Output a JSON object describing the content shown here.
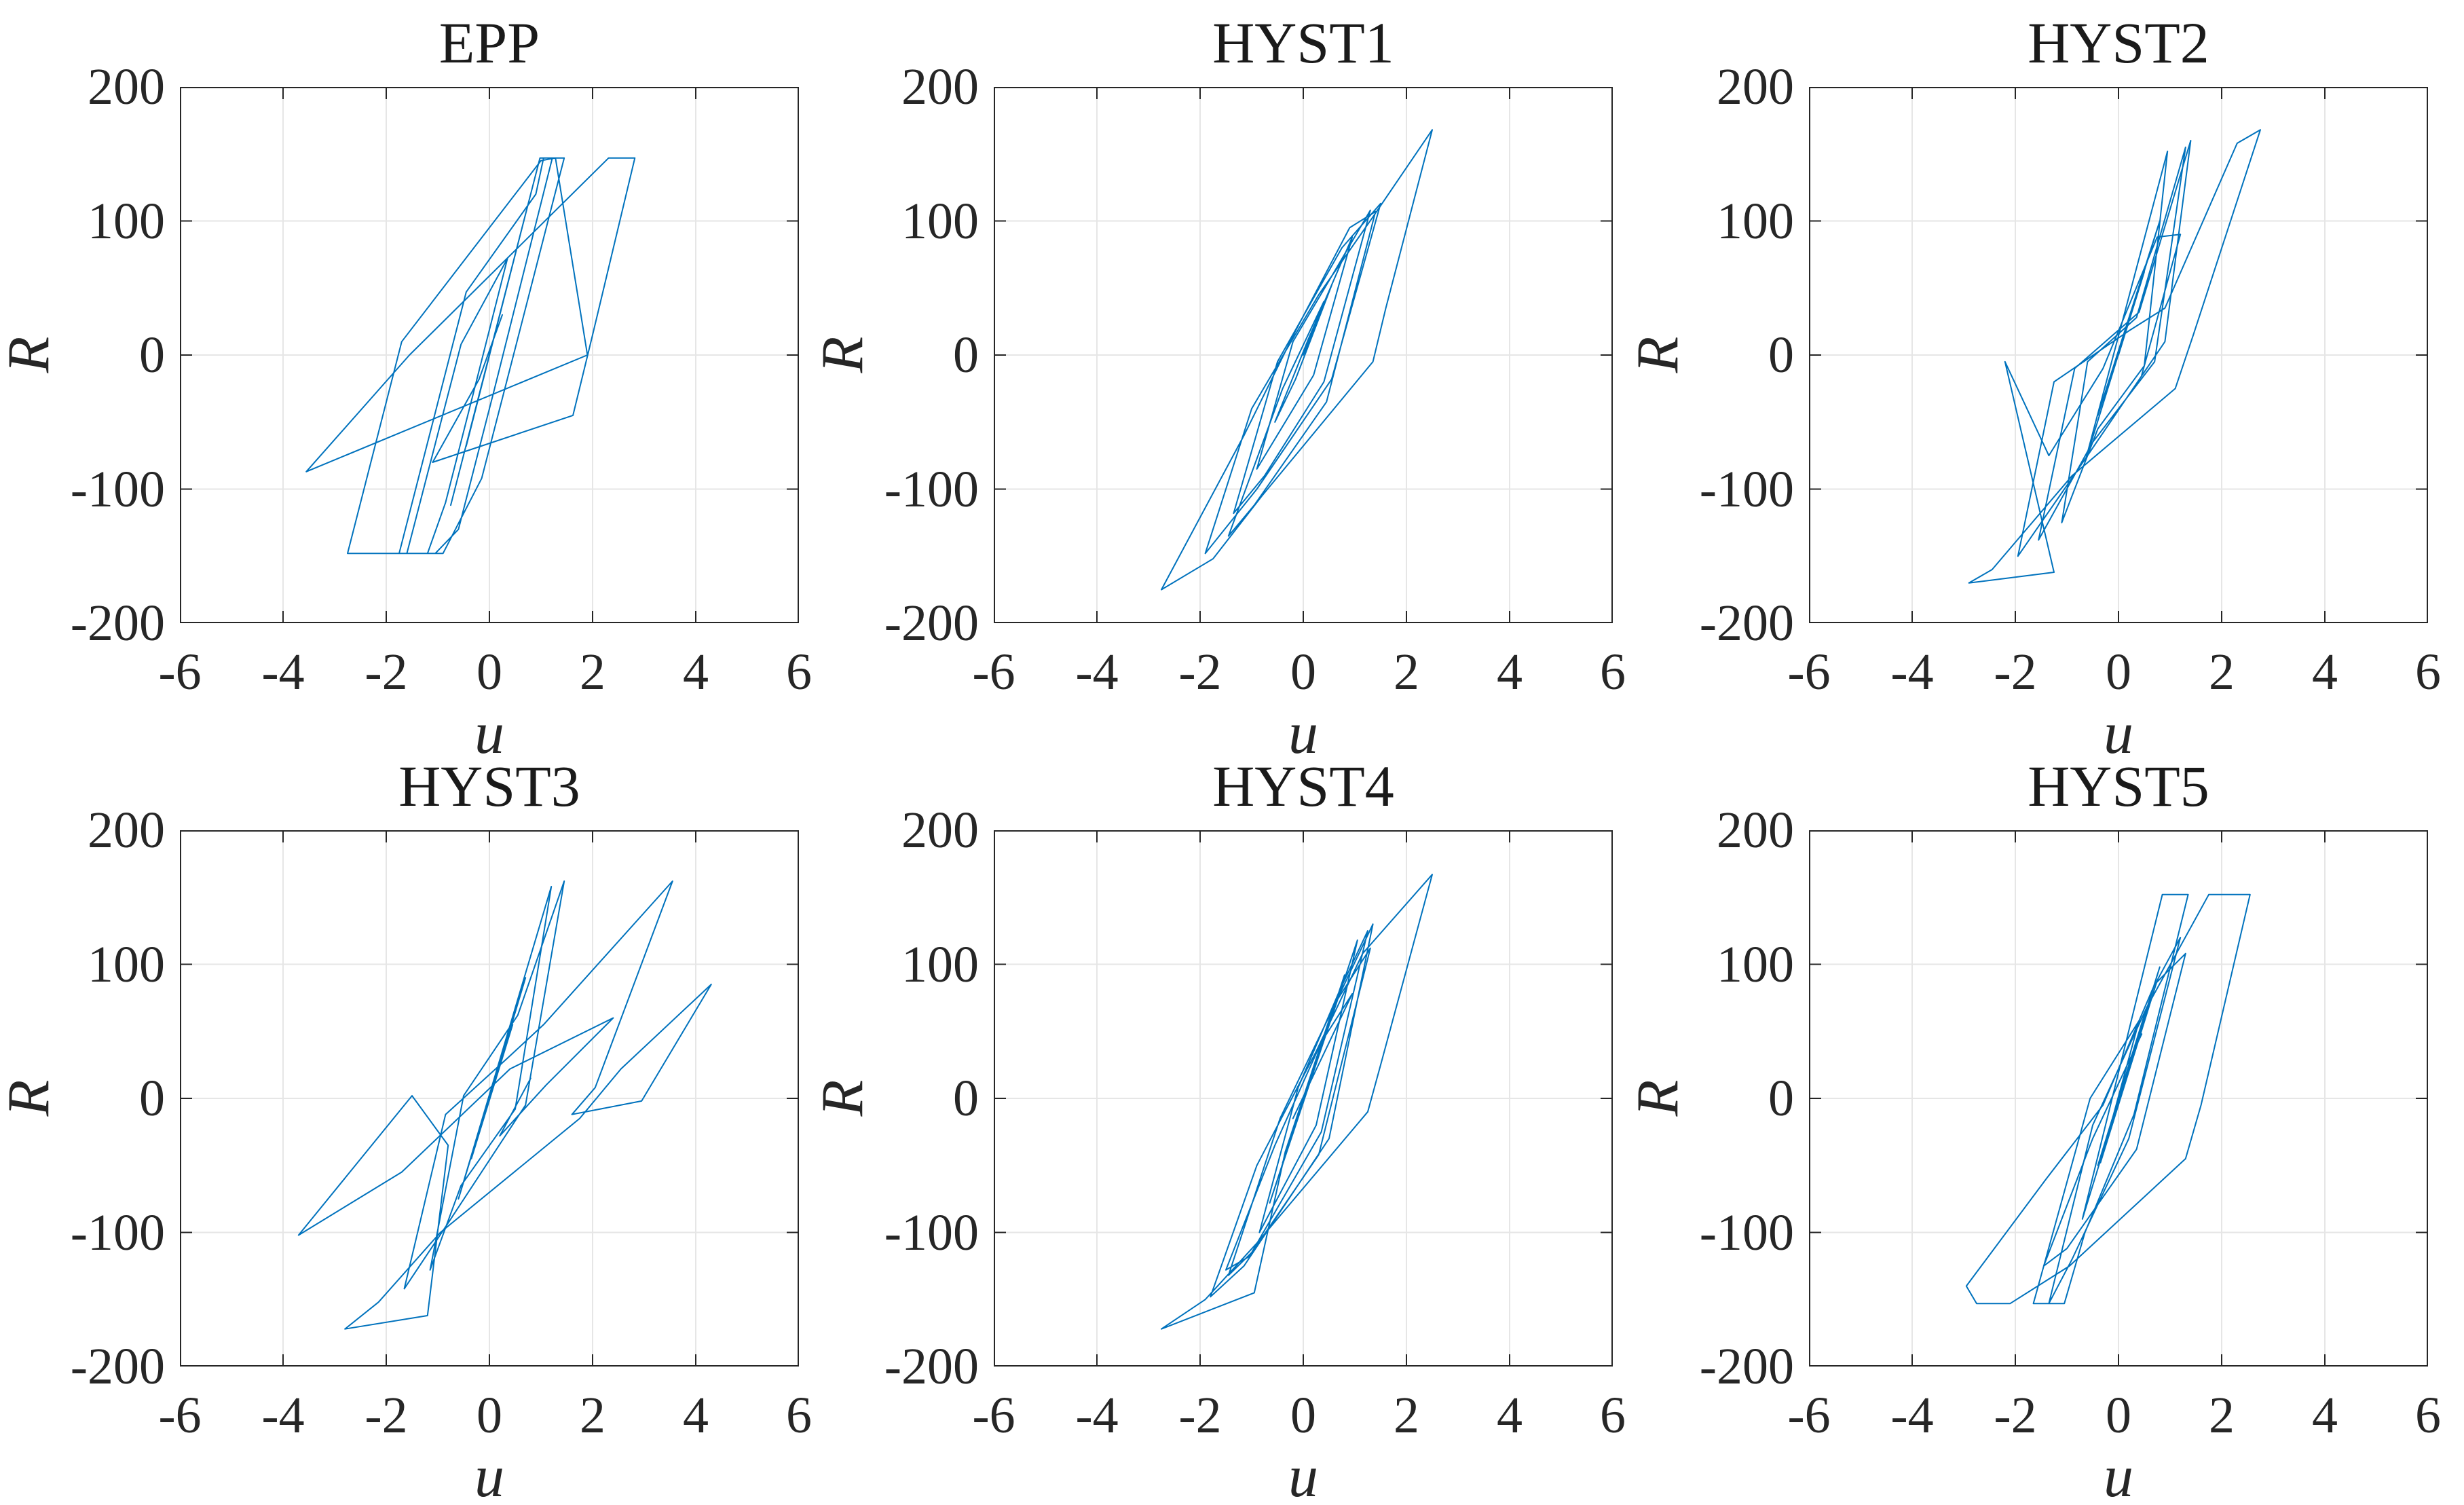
{
  "figure": {
    "background": "#ffffff",
    "accent_line_color": "#0072BD",
    "axis_color": "#262626",
    "grid_color": "#e6e6e6",
    "tick_text_color": "#262626"
  },
  "chart_data": {
    "type": "line",
    "layout": "2 rows x 3 columns of subplots",
    "xlabel": "u",
    "ylabel": "R",
    "xlim": [
      -6,
      6
    ],
    "ylim": [
      -200,
      200
    ],
    "xticks": [
      -6,
      -4,
      -2,
      0,
      2,
      4,
      6
    ],
    "yticks": [
      -200,
      -100,
      0,
      100,
      200
    ],
    "grid": true,
    "legend_position": "none",
    "series_color": "#0072BD",
    "subplots": [
      {
        "title": "EPP",
        "description": "elastic-perfectly-plastic hysteresis, yield plateaus at R=+147 and R=-148",
        "points": [
          [
            0,
            0
          ],
          [
            0.5,
            75
          ],
          [
            -0.45,
            -68
          ],
          [
            0.8,
            120
          ],
          [
            -0.75,
            -112
          ],
          [
            0.98,
            147
          ],
          [
            1.22,
            147
          ],
          [
            0.1,
            -25
          ],
          [
            -0.6,
            -130
          ],
          [
            -1.05,
            -148
          ],
          [
            -1.6,
            -148
          ],
          [
            -0.55,
            8
          ],
          [
            0.35,
            72
          ],
          [
            -0.4,
            -42
          ],
          [
            -0.85,
            -110
          ],
          [
            -1.2,
            -148
          ],
          [
            -1.75,
            -148
          ],
          [
            -0.45,
            47
          ],
          [
            0.9,
            120
          ],
          [
            1.05,
            147
          ],
          [
            1.45,
            147
          ],
          [
            0.4,
            -10
          ],
          [
            -0.15,
            -92
          ],
          [
            -0.9,
            -148
          ],
          [
            -2.75,
            -148
          ],
          [
            -1.7,
            10
          ],
          [
            1.0,
            145
          ],
          [
            1.28,
            147
          ],
          [
            1.9,
            0
          ],
          [
            -3.55,
            -87
          ],
          [
            -1.55,
            0
          ],
          [
            2.31,
            147
          ],
          [
            2.82,
            147
          ],
          [
            2.0,
            15
          ],
          [
            1.62,
            -45
          ],
          [
            -1.1,
            -80
          ],
          [
            -0.2,
            -18
          ],
          [
            0.25,
            30
          ]
        ]
      },
      {
        "title": "HYST1",
        "description": "bilinear hardening spindle loops, peak (2.5,168), min (-2.75,-175)",
        "points": [
          [
            0,
            0
          ],
          [
            0.55,
            52
          ],
          [
            -0.15,
            -18
          ],
          [
            -0.55,
            -50
          ],
          [
            0.1,
            12
          ],
          [
            0.95,
            88
          ],
          [
            0.2,
            -15
          ],
          [
            -0.9,
            -85
          ],
          [
            -0.2,
            10
          ],
          [
            0.6,
            62
          ],
          [
            1.3,
            108
          ],
          [
            0.4,
            -20
          ],
          [
            -0.75,
            -90
          ],
          [
            -1.35,
            -118
          ],
          [
            -0.5,
            -5
          ],
          [
            0.75,
            80
          ],
          [
            1.5,
            113
          ],
          [
            0.55,
            -18
          ],
          [
            -0.9,
            -100
          ],
          [
            -1.9,
            -148
          ],
          [
            -1.0,
            -40
          ],
          [
            0.3,
            45
          ],
          [
            1.35,
            103
          ],
          [
            2.5,
            168
          ],
          [
            1.6,
            35
          ],
          [
            1.35,
            -5
          ],
          [
            -0.8,
            -105
          ],
          [
            -1.75,
            -152
          ],
          [
            -2.75,
            -175
          ],
          [
            -1.15,
            -60
          ],
          [
            -0.15,
            18
          ],
          [
            0.9,
            95
          ],
          [
            1.4,
            107
          ],
          [
            0.45,
            -35
          ],
          [
            -0.95,
            -112
          ],
          [
            -1.45,
            -135
          ],
          [
            -0.4,
            -25
          ],
          [
            0.4,
            40
          ]
        ]
      },
      {
        "title": "HYST2",
        "description": "pinched hysteresis, peak (2.75,168), min (-2.9,-170)",
        "points": [
          [
            0,
            0
          ],
          [
            0.5,
            62
          ],
          [
            -0.4,
            -45
          ],
          [
            0.8,
            100
          ],
          [
            -0.65,
            -80
          ],
          [
            0.95,
            152
          ],
          [
            0.5,
            -8
          ],
          [
            -0.4,
            -55
          ],
          [
            -1.1,
            -125
          ],
          [
            -0.6,
            -5
          ],
          [
            0.35,
            28
          ],
          [
            1.3,
            155
          ],
          [
            0.7,
            -5
          ],
          [
            -0.5,
            -65
          ],
          [
            -1.55,
            -138
          ],
          [
            -0.85,
            -10
          ],
          [
            0.4,
            32
          ],
          [
            1.4,
            160
          ],
          [
            0.9,
            10
          ],
          [
            -0.6,
            -75
          ],
          [
            -1.95,
            -150
          ],
          [
            -1.25,
            -20
          ],
          [
            0.2,
            18
          ],
          [
            0.9,
            35
          ],
          [
            2.3,
            158
          ],
          [
            2.75,
            168
          ],
          [
            1.45,
            15
          ],
          [
            1.1,
            -25
          ],
          [
            -0.9,
            -90
          ],
          [
            -2.45,
            -160
          ],
          [
            -2.9,
            -170
          ],
          [
            -1.25,
            -162
          ],
          [
            -2.2,
            -5
          ],
          [
            -1.35,
            -75
          ],
          [
            -0.3,
            -10
          ],
          [
            0.75,
            88
          ],
          [
            1.2,
            90
          ],
          [
            0.45,
            -15
          ]
        ]
      },
      {
        "title": "HYST3",
        "description": "pinched degrading loops with wide excursions to u=4.3 and u=-3.7",
        "points": [
          [
            0,
            0
          ],
          [
            0.45,
            55
          ],
          [
            -0.35,
            -45
          ],
          [
            0.7,
            90
          ],
          [
            -0.6,
            -75
          ],
          [
            1.2,
            158
          ],
          [
            0.5,
            -8
          ],
          [
            -0.55,
            -65
          ],
          [
            -1.15,
            -128
          ],
          [
            -0.5,
            2
          ],
          [
            0.55,
            62
          ],
          [
            1.45,
            162
          ],
          [
            0.7,
            -5
          ],
          [
            -0.75,
            -90
          ],
          [
            -1.65,
            -142
          ],
          [
            -0.85,
            -12
          ],
          [
            0.35,
            30
          ],
          [
            1.05,
            55
          ],
          [
            3.55,
            162
          ],
          [
            2.05,
            8
          ],
          [
            1.6,
            -12
          ],
          [
            2.95,
            -2
          ],
          [
            4.3,
            85
          ],
          [
            2.55,
            22
          ],
          [
            1.75,
            -15
          ],
          [
            -0.95,
            -100
          ],
          [
            -2.15,
            -152
          ],
          [
            -2.8,
            -172
          ],
          [
            -1.2,
            -162
          ],
          [
            -0.8,
            -35
          ],
          [
            -1.5,
            2
          ],
          [
            -3.7,
            -102
          ],
          [
            -1.7,
            -55
          ],
          [
            0.4,
            22
          ],
          [
            2.4,
            60
          ],
          [
            1.1,
            10
          ],
          [
            0.2,
            -28
          ],
          [
            0.8,
            15
          ]
        ]
      },
      {
        "title": "HYST4",
        "description": "dense thin spindle loops, peak (2.5,167), min (-2.75,-172)",
        "points": [
          [
            0,
            0
          ],
          [
            0.5,
            58
          ],
          [
            -0.4,
            -48
          ],
          [
            0.8,
            92
          ],
          [
            -0.65,
            -78
          ],
          [
            1.05,
            118
          ],
          [
            0.25,
            -20
          ],
          [
            -0.85,
            -100
          ],
          [
            -0.1,
            8
          ],
          [
            0.7,
            80
          ],
          [
            1.25,
            125
          ],
          [
            0.35,
            -25
          ],
          [
            -1.0,
            -115
          ],
          [
            -1.45,
            -132
          ],
          [
            -0.45,
            -15
          ],
          [
            0.55,
            65
          ],
          [
            1.35,
            130
          ],
          [
            0.5,
            -30
          ],
          [
            -1.15,
            -125
          ],
          [
            -1.8,
            -148
          ],
          [
            -0.9,
            -50
          ],
          [
            0.25,
            35
          ],
          [
            1.15,
            108
          ],
          [
            2.5,
            167
          ],
          [
            1.5,
            25
          ],
          [
            1.25,
            -10
          ],
          [
            -0.9,
            -108
          ],
          [
            -1.9,
            -150
          ],
          [
            -2.75,
            -172
          ],
          [
            -0.95,
            -145
          ],
          [
            -0.35,
            -40
          ],
          [
            0.6,
            70
          ],
          [
            1.3,
            112
          ],
          [
            0.3,
            -42
          ],
          [
            -1.05,
            -118
          ],
          [
            -1.5,
            -128
          ],
          [
            -0.55,
            -35
          ],
          [
            0.35,
            42
          ],
          [
            0.95,
            78
          ],
          [
            -0.2,
            -15
          ]
        ]
      },
      {
        "title": "HYST5",
        "description": "EPP-like degrading loops, plateaus at R=+152 and R=-153",
        "points": [
          [
            0,
            0
          ],
          [
            0.5,
            62
          ],
          [
            -0.4,
            -50
          ],
          [
            0.8,
            98
          ],
          [
            -0.7,
            -90
          ],
          [
            0.85,
            152
          ],
          [
            1.35,
            152
          ],
          [
            0.3,
            -12
          ],
          [
            -0.65,
            -100
          ],
          [
            -1.05,
            -153
          ],
          [
            -1.65,
            -153
          ],
          [
            -0.55,
            0
          ],
          [
            0.4,
            58
          ],
          [
            -0.35,
            -48
          ],
          [
            0.75,
            88
          ],
          [
            1.2,
            120
          ],
          [
            0.2,
            -30
          ],
          [
            -0.9,
            -120
          ],
          [
            -1.35,
            -153
          ],
          [
            -0.5,
            -20
          ],
          [
            0.55,
            68
          ],
          [
            1.75,
            152
          ],
          [
            2.55,
            152
          ],
          [
            1.6,
            -5
          ],
          [
            1.3,
            -45
          ],
          [
            -0.95,
            -125
          ],
          [
            -2.1,
            -153
          ],
          [
            -2.75,
            -153
          ],
          [
            -2.95,
            -140
          ],
          [
            -1.4,
            -60
          ],
          [
            -0.3,
            -5
          ],
          [
            0.7,
            85
          ],
          [
            1.3,
            108
          ],
          [
            0.35,
            -38
          ],
          [
            -1.0,
            -112
          ],
          [
            -1.45,
            -125
          ],
          [
            -0.5,
            -30
          ],
          [
            0.45,
            48
          ]
        ]
      }
    ]
  }
}
